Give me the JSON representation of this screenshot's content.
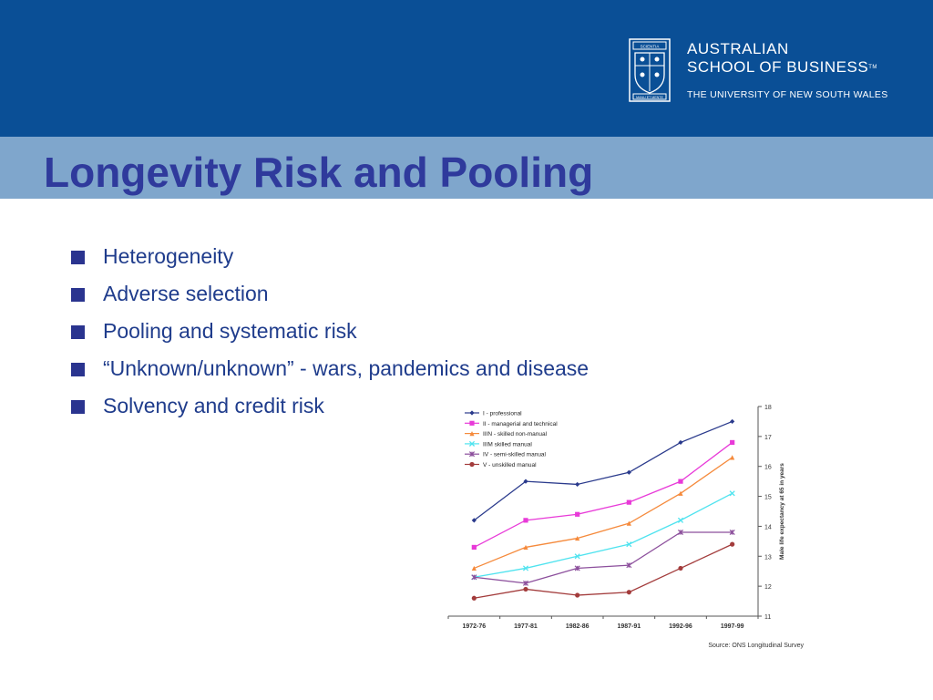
{
  "header": {
    "logo": {
      "line1": "AUSTRALIAN",
      "line2": "SCHOOL OF BUSINESS",
      "trademark": "TM",
      "line3": "THE UNIVERSITY OF NEW SOUTH WALES",
      "crest_text_top": "SCIENTIA",
      "crest_text_bottom": "MANU ET MENTE"
    }
  },
  "slide": {
    "title": "Longevity Risk and Pooling",
    "bullets": [
      "Heterogeneity",
      "Adverse selection",
      "Pooling and systematic risk",
      "“Unknown/unknown”  - wars, pandemics and disease",
      "Solvency and credit risk"
    ]
  },
  "chart_data": {
    "type": "line",
    "categories": [
      "1972-76",
      "1977-81",
      "1982-86",
      "1987-91",
      "1992-96",
      "1997-99"
    ],
    "series": [
      {
        "name": "I - professional",
        "values": [
          14.2,
          15.5,
          15.4,
          15.8,
          16.8,
          17.5
        ],
        "color": "#2a3a8c",
        "marker": "diamond"
      },
      {
        "name": "II - managerial and technical",
        "values": [
          13.3,
          14.2,
          14.4,
          14.8,
          15.5,
          16.8
        ],
        "color": "#e83ad8",
        "marker": "square"
      },
      {
        "name": "IIIN - skilled non-manual",
        "values": [
          12.6,
          13.3,
          13.6,
          14.1,
          15.1,
          16.3
        ],
        "color": "#f58a3c",
        "marker": "triangle"
      },
      {
        "name": "IIIM skilled manual",
        "values": [
          12.3,
          12.6,
          13.0,
          13.4,
          14.2,
          15.1
        ],
        "color": "#4fe3ef",
        "marker": "x"
      },
      {
        "name": "IV - semi-skilled manual",
        "values": [
          12.3,
          12.1,
          12.6,
          12.7,
          13.8,
          13.8
        ],
        "color": "#8c4f9c",
        "marker": "star"
      },
      {
        "name": "V - unskilled manual",
        "values": [
          11.6,
          11.9,
          11.7,
          11.8,
          12.6,
          13.4
        ],
        "color": "#a33c3c",
        "marker": "circle"
      }
    ],
    "ylim": [
      11,
      18
    ],
    "yticks": [
      "11",
      "12",
      "13",
      "14",
      "15",
      "16",
      "17",
      "18"
    ],
    "ylabel": "Male life expectancy at 65 in years",
    "xlabel": "",
    "source": "Source: ONS Longitudinal Survey",
    "legend_position": "top-left",
    "y_axis_side": "right",
    "grid": false
  }
}
